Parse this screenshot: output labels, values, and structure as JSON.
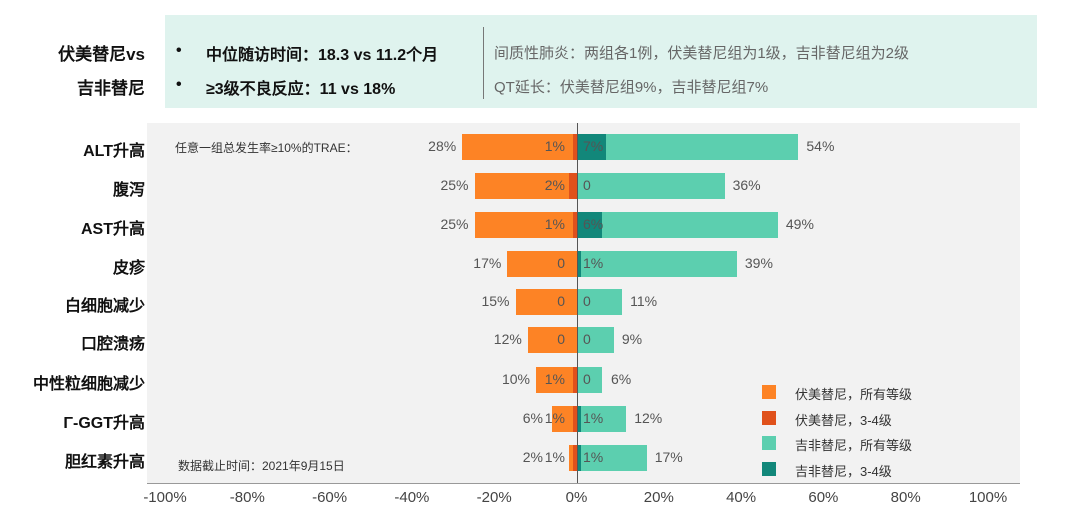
{
  "summary": {
    "comparison_line1": "伏美替尼vs",
    "comparison_line2": "吉非替尼",
    "bullet": "•",
    "left_points": [
      "中位随访时间：18.3 vs 11.2个月",
      "≥3级不良反应：11 vs 18%"
    ],
    "right_points": [
      "间质性肺炎：两组各1例，伏美替尼组为1级，吉非替尼组为2级",
      "QT延长：伏美替尼组9%，吉非替尼组7%"
    ]
  },
  "chart_data": {
    "type": "bar",
    "orientation": "horizontal-diverging",
    "annotation": "任意一组总发生率≥10%的TRAE：",
    "footnote": "数据截止时间：2021年9月15日",
    "categories": [
      "ALT升高",
      "腹泻",
      "AST升高",
      "皮疹",
      "白细胞减少",
      "口腔溃疡",
      "中性粒细胞减少",
      "Γ-GGT升高",
      "胆红素升高"
    ],
    "series": [
      {
        "name": "伏美替尼，所有等级",
        "side": "left",
        "color": "#fd8325",
        "values": [
          28,
          25,
          25,
          17,
          15,
          12,
          10,
          6,
          2
        ],
        "labels": [
          "28%",
          "25%",
          "25%",
          "17%",
          "15%",
          "12%",
          "10%",
          "6%",
          "2%"
        ]
      },
      {
        "name": "伏美替尼，3-4级",
        "side": "left",
        "color": "#e0511b",
        "values": [
          1,
          2,
          1,
          0,
          0,
          0,
          1,
          1,
          1
        ],
        "labels": [
          "1%",
          "2%",
          "1%",
          "0",
          "0",
          "0",
          "1%",
          "1%",
          "1%"
        ]
      },
      {
        "name": "吉非替尼，所有等级",
        "side": "right",
        "color": "#5ccfaf",
        "values": [
          54,
          36,
          49,
          39,
          11,
          9,
          6,
          12,
          17
        ],
        "labels": [
          "54%",
          "36%",
          "49%",
          "39%",
          "11%",
          "9%",
          "6%",
          "12%",
          "17%"
        ]
      },
      {
        "name": "吉非替尼，3-4级",
        "side": "right",
        "color": "#12877a",
        "values": [
          7,
          0,
          6,
          1,
          0,
          0,
          0,
          1,
          1
        ],
        "labels": [
          "7%",
          "0",
          "6%",
          "1%",
          "0",
          "0",
          "0",
          "1%",
          "1%"
        ]
      }
    ],
    "xlim": [
      -100,
      100
    ],
    "xticks": [
      "-100%",
      "-80%",
      "-60%",
      "-40%",
      "-20%",
      "0%",
      "20%",
      "40%",
      "60%",
      "80%",
      "100%"
    ],
    "legend_position": "bottom-right"
  }
}
